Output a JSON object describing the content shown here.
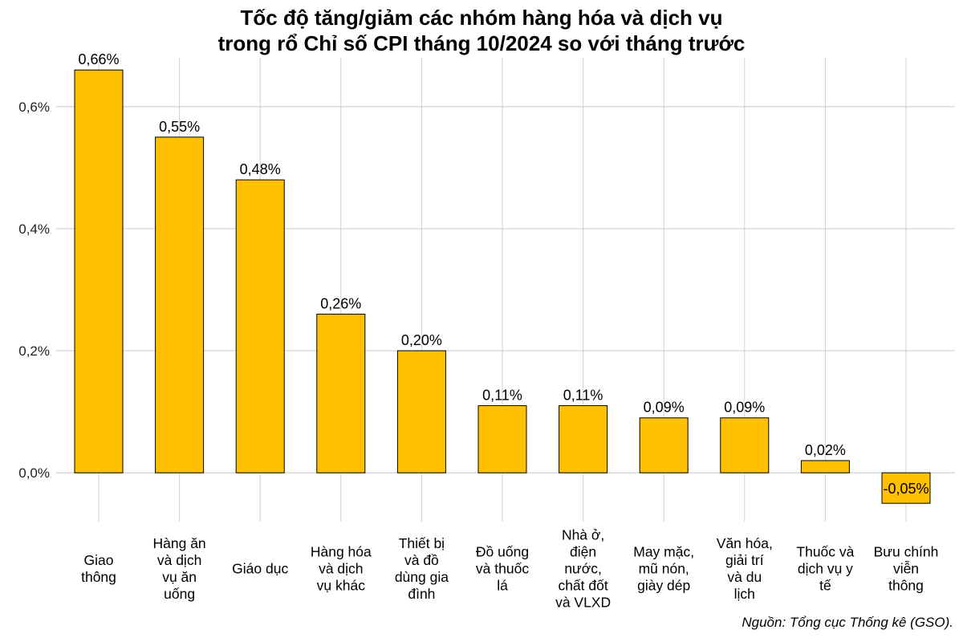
{
  "title_lines": [
    "Tốc độ tăng/giảm các nhóm hàng hóa và dịch vụ",
    "trong rổ Chỉ số CPI tháng 10/2024 so với tháng trước"
  ],
  "source": "Nguồn: Tổng cục Thống kê (GSO).",
  "colors": {
    "bar": "#FFC000",
    "bar_outline": "#000000",
    "grid": "#d0d0d0"
  },
  "chart_data": {
    "type": "bar",
    "title": "Tốc độ tăng/giảm các nhóm hàng hóa và dịch vụ trong rổ Chỉ số CPI tháng 10/2024 so với tháng trước",
    "categories": [
      "Giao thông",
      "Hàng ăn và dịch vụ ăn uống",
      "Giáo dục",
      "Hàng hóa và dịch vụ khác",
      "Thiết bị và đồ dùng gia đình",
      "Đồ uống và thuốc lá",
      "Nhà ở, điện nước, chất đốt và VLXD",
      "May mặc, mũ nón, giày dép",
      "Văn hóa, giải trí và du lịch",
      "Thuốc và dịch vụ y tế",
      "Bưu chính viễn thông"
    ],
    "category_label_lines": [
      [
        "Giao",
        "thông"
      ],
      [
        "Hàng ăn",
        "và dịch",
        "vụ ăn",
        "uống"
      ],
      [
        "Giáo dục"
      ],
      [
        "Hàng hóa",
        "và dịch",
        "vụ khác"
      ],
      [
        "Thiết bị",
        "và đồ",
        "dùng gia",
        "đình"
      ],
      [
        "Đồ uống",
        "và thuốc",
        "lá"
      ],
      [
        "Nhà ở,",
        "điện",
        "nước,",
        "chất đốt",
        "và VLXD"
      ],
      [
        "May mặc,",
        "mũ nón,",
        "giày dép"
      ],
      [
        "Văn hóa,",
        "giải trí",
        "và du",
        "lịch"
      ],
      [
        "Thuốc và",
        "dịch vụ y",
        "tế"
      ],
      [
        "Bưu chính",
        "viễn",
        "thông"
      ]
    ],
    "values": [
      0.66,
      0.55,
      0.48,
      0.26,
      0.2,
      0.11,
      0.11,
      0.09,
      0.09,
      0.02,
      -0.05
    ],
    "data_labels": [
      "0,66%",
      "0,55%",
      "0,48%",
      "0,26%",
      "0,20%",
      "0,11%",
      "0,11%",
      "0,09%",
      "0,09%",
      "0,02%",
      "-0,05%"
    ],
    "yticks": [
      0,
      0.2,
      0.4,
      0.6
    ],
    "ytick_labels": [
      "0,0%",
      "0,2%",
      "0,4%",
      "0,6%"
    ],
    "ylim": [
      -0.08,
      0.68
    ],
    "grid": true,
    "xlabel": "",
    "ylabel": ""
  }
}
